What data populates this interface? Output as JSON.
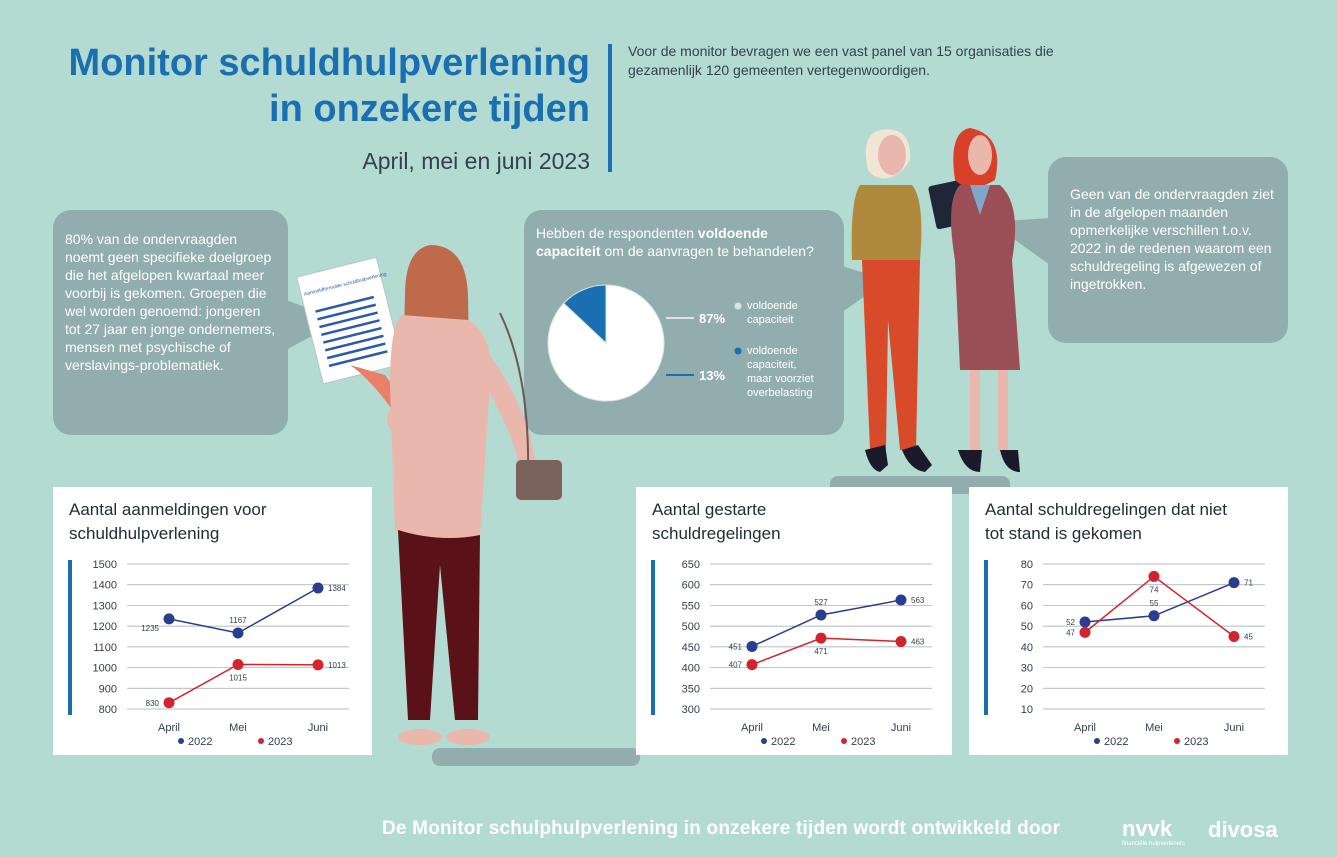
{
  "header": {
    "title_line1": "Monitor schuldhulpverlening",
    "title_line2": "in onzekere tijden",
    "subtitle": "April, mei en juni 2023",
    "intro": "Voor de monitor bevragen we  een vast panel van 15 organisaties die gezamenlijk 120 gemeenten vertegenwoordigen."
  },
  "bubbles": {
    "left": "80% van de ondervraagden noemt geen specifieke doelgroep die het afgelopen kwartaal meer voorbij is gekomen. Groepen die wel worden genoemd: jongeren tot 27 jaar en jonge ondernemers, mensen met psychische of verslavings-problematiek.",
    "right": "Geen van de ondervraagden ziet in de afgelopen maanden opmerkelijke verschillen t.o.v. 2022 in de  redenen waarom een schuldregeling is afgewezen of ingetrokken.",
    "mid_q_pre": "Hebben de respondenten ",
    "mid_q_bold": "voldoende capaciteit",
    "mid_q_post": " om de aanvragen te behandelen?"
  },
  "form_label": "Aanmeldformulier schuldhulpverlening",
  "footer": {
    "text": "De Monitor schulphulpverlening in onzekere tijden wordt ontwikkeld door",
    "logo1": "nvvk",
    "logo1_sub": "financiële hulpverleners",
    "logo2": "divosa"
  },
  "colors": {
    "blue2022": "#2a3d8f",
    "red2023": "#d1242f",
    "accent": "#1a6fb0",
    "bubble": "#91adad"
  },
  "chart_data": [
    {
      "type": "pie",
      "slices": [
        {
          "label": "voldoende capaciteit",
          "value": 87,
          "display": "87%",
          "color": "#ffffff"
        },
        {
          "label": "voldoende capaciteit, maar voorziet overbelasting",
          "value": 13,
          "display": "13%",
          "color": "#1a6fb0"
        }
      ]
    },
    {
      "type": "line",
      "title": "Aantal aanmeldingen voor schuldhulpverlening",
      "categories": [
        "April",
        "Mei",
        "Juni"
      ],
      "yticks": [
        "1500",
        "1400",
        "1300",
        "1200",
        "1100",
        "1000",
        "900",
        "800"
      ],
      "ylim": [
        800,
        1500
      ],
      "series": [
        {
          "name": "2022",
          "values": [
            1235,
            1167,
            1384
          ],
          "labels": [
            "1235",
            "1167",
            "1384"
          ]
        },
        {
          "name": "2023",
          "values": [
            830,
            1015,
            1013
          ],
          "labels": [
            "830",
            "1015",
            "1013"
          ]
        }
      ]
    },
    {
      "type": "line",
      "title": "Aantal gestarte schuldregelingen",
      "categories": [
        "April",
        "Mei",
        "Juni"
      ],
      "yticks": [
        "650",
        "600",
        "550",
        "500",
        "450",
        "400",
        "350",
        "300"
      ],
      "ylim": [
        300,
        650
      ],
      "series": [
        {
          "name": "2022",
          "values": [
            451,
            527,
            563
          ],
          "labels": [
            "451",
            "527",
            "563"
          ]
        },
        {
          "name": "2023",
          "values": [
            407,
            471,
            463
          ],
          "labels": [
            "407",
            "471",
            "463"
          ]
        }
      ]
    },
    {
      "type": "line",
      "title": "Aantal schuldregelingen dat niet tot stand is gekomen",
      "categories": [
        "April",
        "Mei",
        "Juni"
      ],
      "yticks": [
        "80",
        "70",
        "60",
        "50",
        "40",
        "30",
        "20",
        "10"
      ],
      "ylim": [
        10,
        80
      ],
      "series": [
        {
          "name": "2022",
          "values": [
            52,
            55,
            71
          ],
          "labels": [
            "52",
            "55",
            "71"
          ]
        },
        {
          "name": "2023",
          "values": [
            47,
            74,
            45
          ],
          "labels": [
            "47",
            "74",
            "45"
          ]
        }
      ]
    }
  ]
}
